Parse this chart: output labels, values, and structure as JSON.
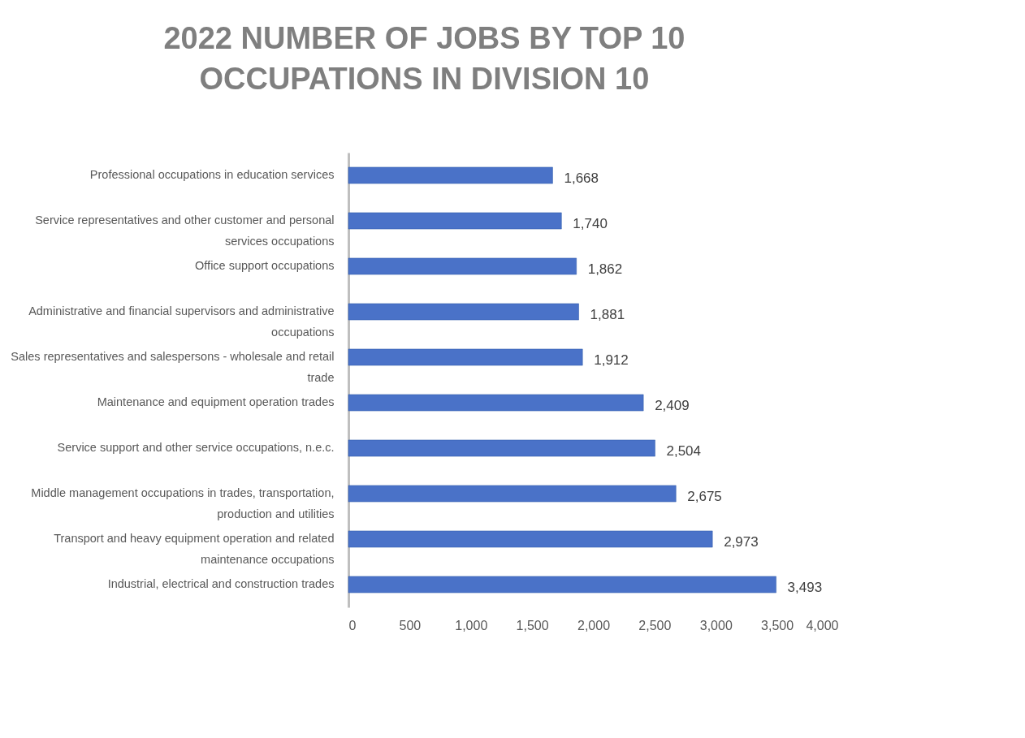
{
  "chart_data": {
    "type": "bar",
    "orientation": "horizontal",
    "title": "2022 NUMBER OF JOBS BY TOP 10 OCCUPATIONS IN DIVISION 10",
    "categories": [
      "Professional occupations in education services",
      "Service representatives and other customer and personal services occupations",
      "Office support occupations",
      "Administrative and financial supervisors and administrative occupations",
      "Sales representatives and salespersons - wholesale and retail trade",
      "Maintenance and equipment operation trades",
      "Service support and other service occupations, n.e.c.",
      "Middle management occupations in trades, transportation, production and utilities",
      "Transport and heavy equipment operation and related maintenance occupations",
      "Industrial, electrical and construction trades"
    ],
    "values": [
      1668,
      1740,
      1862,
      1881,
      1912,
      2409,
      2504,
      2675,
      2973,
      3493
    ],
    "value_labels": [
      "1,668",
      "1,740",
      "1,862",
      "1,881",
      "1,912",
      "2,409",
      "2,504",
      "2,675",
      "2,973",
      "3,493"
    ],
    "color": "#4a72c8",
    "grid": false,
    "xlim": [
      0,
      4000
    ],
    "xticks": [
      0,
      500,
      {
        "value": 1000,
        "label": "1,000"
      },
      {
        "value": 1500,
        "label": "1,500"
      },
      {
        "value": 2000,
        "label": "2,000"
      },
      {
        "value": 2500,
        "label": "2,500"
      },
      {
        "value": 3000,
        "label": "3,000"
      },
      {
        "value": 3500,
        "label": "3,500"
      },
      {
        "value": 4000,
        "label": "4,000"
      }
    ]
  }
}
